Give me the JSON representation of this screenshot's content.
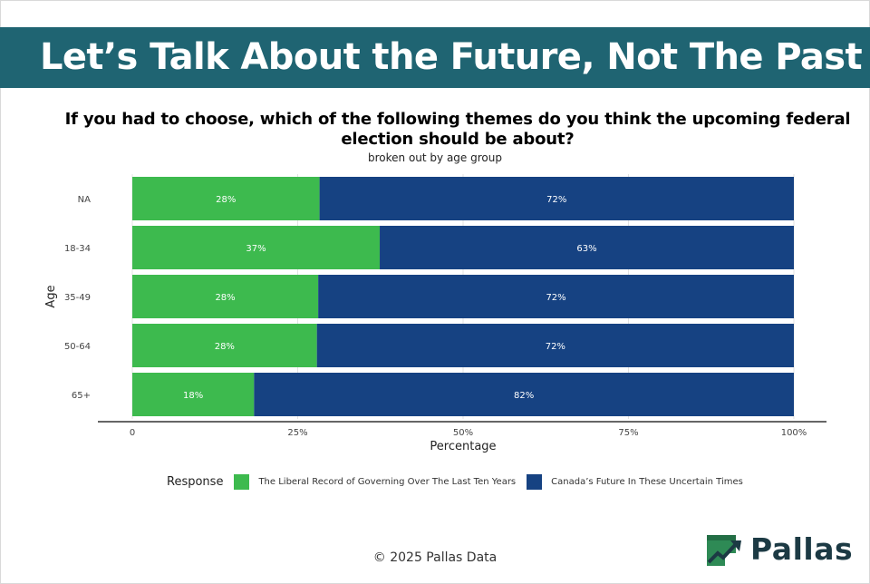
{
  "banner": {
    "title": "Let’s Talk About the Future, Not The Past"
  },
  "footer": {
    "copyright": "© 2025 Pallas Data"
  },
  "logo": {
    "name": "Pallas"
  },
  "colors": {
    "banner": "#1f6472",
    "liberal": "#3dba4e",
    "future": "#164282"
  },
  "chart_data": {
    "type": "bar",
    "orientation": "horizontal",
    "stacked": true,
    "title": "If you had to choose, which of the following themes do you think the upcoming federal election should be about?",
    "subtitle": "broken out by age group",
    "xlabel": "Percentage",
    "ylabel": "Age",
    "xlim": [
      0,
      1
    ],
    "xticks": [
      {
        "value": 0,
        "label": "0"
      },
      {
        "value": 0.25,
        "label": "25%"
      },
      {
        "value": 0.5,
        "label": "50%"
      },
      {
        "value": 0.75,
        "label": "75%"
      },
      {
        "value": 1,
        "label": "100%"
      }
    ],
    "categories": [
      "NA",
      "18-34",
      "35-49",
      "50-64",
      "65+"
    ],
    "legend_title": "Response",
    "legend_position": "bottom",
    "series": [
      {
        "name": "The Liberal Record of Governing Over The Last Ten Years",
        "color": "#3dba4e",
        "values": [
          0.283,
          0.374,
          0.281,
          0.279,
          0.184
        ],
        "labels": [
          "28%",
          "37%",
          "28%",
          "28%",
          "18%"
        ]
      },
      {
        "name": "Canada’s Future In These Uncertain Times",
        "color": "#164282",
        "values": [
          0.717,
          0.626,
          0.719,
          0.721,
          0.816
        ],
        "labels": [
          "72%",
          "63%",
          "72%",
          "72%",
          "82%"
        ]
      }
    ]
  }
}
